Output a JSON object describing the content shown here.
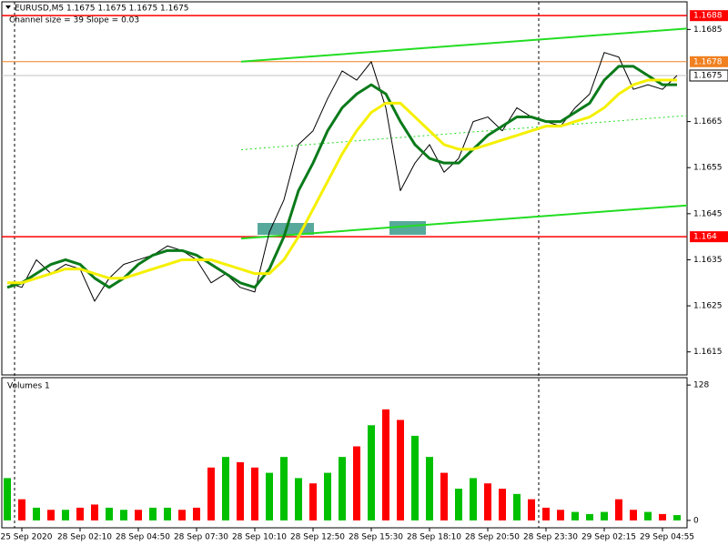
{
  "chart_data": [
    {
      "type": "line",
      "title": "EURUSD,M5  1.1675 1.1675 1.1675 1.1675",
      "subtitle": "Channel size = 39 Slope = 0.03",
      "categories": [
        null,
        "25 Sep 2020",
        null,
        null,
        null,
        "28 Sep 02:10",
        null,
        null,
        null,
        "28 Sep 04:50",
        null,
        null,
        null,
        "28 Sep 07:30",
        null,
        null,
        null,
        "28 Sep 10:10",
        null,
        null,
        null,
        "28 Sep 12:50",
        null,
        null,
        null,
        "28 Sep 15:30",
        null,
        null,
        null,
        "28 Sep 18:10",
        null,
        null,
        null,
        "28 Sep 20:50",
        null,
        null,
        null,
        "28 Sep 23:30",
        null,
        null,
        null,
        "29 Sep 02:15",
        null,
        null,
        null,
        "29 Sep 04:55",
        null
      ],
      "series": [
        {
          "color": "#000000",
          "values": [
            1.163,
            1.1629,
            1.1635,
            1.1632,
            1.1634,
            1.1633,
            1.1626,
            1.1631,
            1.1634,
            1.1635,
            1.1636,
            1.1638,
            1.1637,
            1.1635,
            1.163,
            1.1632,
            1.1629,
            1.1628,
            1.1641,
            1.1648,
            1.166,
            1.1663,
            1.167,
            1.1676,
            1.1674,
            1.1678,
            1.1668,
            1.165,
            1.1656,
            1.166,
            1.1654,
            1.1657,
            1.1665,
            1.1666,
            1.1663,
            1.1668,
            1.1666,
            1.1665,
            1.1664,
            1.1668,
            1.1671,
            1.168,
            1.1679,
            1.1672,
            1.1673,
            1.1672,
            1.1675
          ]
        },
        {
          "color": "#0a7a1a",
          "values": [
            1.1629,
            1.163,
            1.1632,
            1.1634,
            1.1635,
            1.1634,
            1.1631,
            1.1629,
            1.1631,
            1.1634,
            1.1636,
            1.1637,
            1.1637,
            1.1636,
            1.1634,
            1.1632,
            1.163,
            1.1629,
            1.1633,
            1.164,
            1.165,
            1.1656,
            1.1663,
            1.1668,
            1.1671,
            1.1673,
            1.1671,
            1.1665,
            1.166,
            1.1657,
            1.1656,
            1.1656,
            1.1659,
            1.1662,
            1.1664,
            1.1666,
            1.1666,
            1.1665,
            1.1665,
            1.1667,
            1.1669,
            1.1674,
            1.1677,
            1.1677,
            1.1675,
            1.1673,
            1.1673
          ]
        },
        {
          "color": "#f5f000",
          "values": [
            1.163,
            1.163,
            1.1631,
            1.1632,
            1.1633,
            1.1633,
            1.1632,
            1.1631,
            1.1631,
            1.1632,
            1.1633,
            1.1634,
            1.1635,
            1.1635,
            1.1635,
            1.1634,
            1.1633,
            1.1632,
            1.1632,
            1.1635,
            1.164,
            1.1646,
            1.1652,
            1.1658,
            1.1663,
            1.1667,
            1.1669,
            1.1669,
            1.1666,
            1.1663,
            1.166,
            1.1659,
            1.1659,
            1.166,
            1.1661,
            1.1662,
            1.1663,
            1.1664,
            1.1664,
            1.1665,
            1.1666,
            1.1668,
            1.1671,
            1.1673,
            1.1674,
            1.1674,
            1.1674
          ]
        }
      ],
      "ylim": [
        1.161,
        1.1691
      ],
      "yticks": [
        1.1615,
        1.1625,
        1.1635,
        1.1645,
        1.1655,
        1.1665,
        1.1685
      ],
      "levels": [
        {
          "value": 1.1688,
          "color": "#ff0000"
        },
        {
          "value": 1.1678,
          "color": "#f08020"
        },
        {
          "value": 1.164,
          "color": "#ff0000"
        }
      ],
      "last_price": 1.1675,
      "channel_color": "#22dd22",
      "channel_upper": [
        1.1678,
        1.16852
      ],
      "channel_lower": [
        1.16396,
        1.16468
      ],
      "channel_middle": [
        1.16589,
        1.16663
      ]
    },
    {
      "type": "bar",
      "title": "Volumes 1",
      "values": [
        40,
        20,
        12,
        10,
        10,
        12,
        15,
        12,
        10,
        10,
        12,
        12,
        10,
        12,
        50,
        60,
        55,
        50,
        45,
        60,
        40,
        35,
        45,
        60,
        70,
        90,
        105,
        95,
        80,
        60,
        45,
        30,
        40,
        35,
        30,
        25,
        20,
        12,
        10,
        8,
        6,
        8,
        20,
        10,
        8,
        6,
        5
      ],
      "colors": [
        "#00c000",
        "#ff0000",
        "#00c000",
        "#ff0000",
        "#00c000",
        "#ff0000",
        "#ff0000",
        "#00c000",
        "#00c000",
        "#ff0000",
        "#00c000",
        "#00c000",
        "#ff0000",
        "#ff0000",
        "#ff0000",
        "#00c000",
        "#ff0000",
        "#ff0000",
        "#00c000",
        "#00c000",
        "#00c000",
        "#ff0000",
        "#00c000",
        "#00c000",
        "#ff0000",
        "#00c000",
        "#ff0000",
        "#ff0000",
        "#00c000",
        "#00c000",
        "#ff0000",
        "#00c000",
        "#00c000",
        "#ff0000",
        "#ff0000",
        "#00c000",
        "#ff0000",
        "#ff0000",
        "#ff0000",
        "#00c000",
        "#00c000",
        "#00c000",
        "#ff0000",
        "#ff0000",
        "#00c000",
        "#ff0000",
        "#00c000"
      ],
      "ylim": [
        -7,
        135
      ],
      "yticks": [
        0,
        128
      ]
    }
  ]
}
